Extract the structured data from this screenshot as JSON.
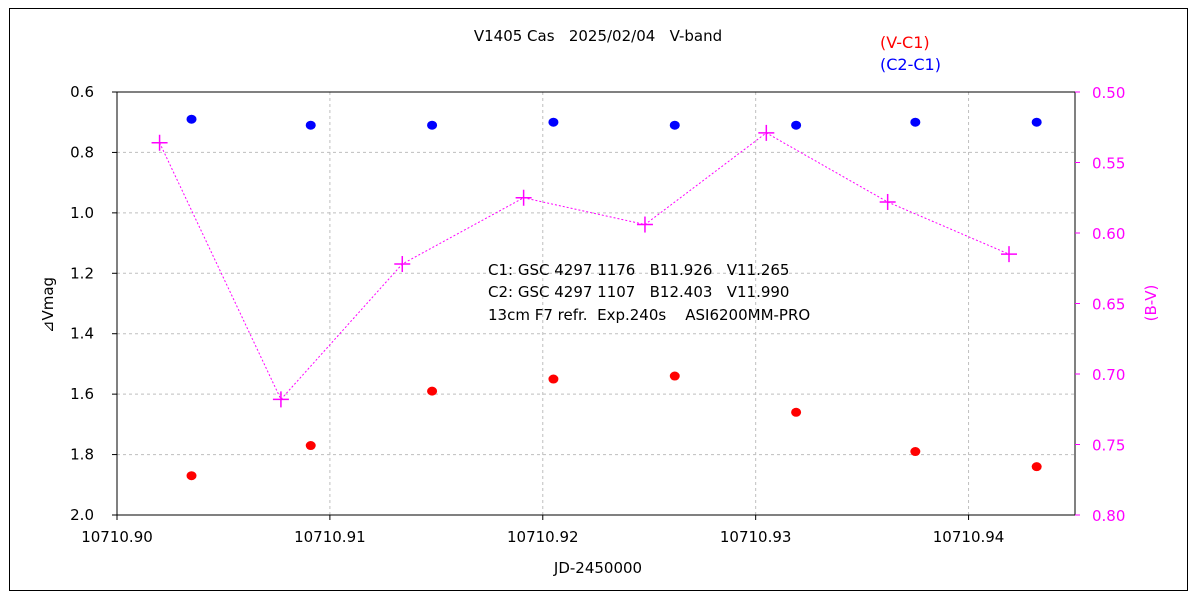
{
  "colors": {
    "vc1": "#ff0000",
    "c2c1": "#0000ff",
    "bv": "#ff00ff",
    "grid": "#bfbfbf",
    "axis": "#000000"
  },
  "chart_data": {
    "type": "scatter",
    "title": "V1405 Cas   2025/02/04   V-band",
    "xlabel": "JD-2450000",
    "ylabel": "⊿Vmag",
    "y2label": "(B-V)",
    "xlim": [
      10710.9,
      10710.945
    ],
    "ylim": [
      0.6,
      2.0
    ],
    "y_inverted": true,
    "y2lim": [
      0.5,
      0.8
    ],
    "y2_inverted": true,
    "grid": true,
    "x_ticks": [
      "10710.90",
      "10710.91",
      "10710.92",
      "10710.93",
      "10710.94"
    ],
    "x_tick_values": [
      10710.9,
      10710.91,
      10710.92,
      10710.93,
      10710.94
    ],
    "y_ticks": [
      "0.6",
      "0.8",
      "1.0",
      "1.2",
      "1.4",
      "1.6",
      "1.8",
      "2.0"
    ],
    "y_tick_values": [
      0.6,
      0.8,
      1.0,
      1.2,
      1.4,
      1.6,
      1.8,
      2.0
    ],
    "y2_ticks": [
      "0.50",
      "0.55",
      "0.60",
      "0.65",
      "0.70",
      "0.75",
      "0.80"
    ],
    "y2_tick_values": [
      0.5,
      0.55,
      0.6,
      0.65,
      0.7,
      0.75,
      0.8
    ],
    "legend": [
      "(V-C1)",
      "(C2-C1)"
    ],
    "legend_position": "top-right",
    "annotations": [
      "C1: GSC 4297 1176   B11.926   V11.265",
      "C2: GSC 4297 1107   B12.403   V11.990",
      "13cm F7 refr.  Exp.240s    ASI6200MM-PRO"
    ],
    "series": [
      {
        "name": "(V-C1)",
        "axis": "left",
        "marker": "dot",
        "x": [
          10710.9035,
          10710.9091,
          10710.9148,
          10710.9205,
          10710.9262,
          10710.9319,
          10710.9375,
          10710.9432
        ],
        "y": [
          1.87,
          1.77,
          1.59,
          1.55,
          1.54,
          1.66,
          1.79,
          1.84
        ]
      },
      {
        "name": "(C2-C1)",
        "axis": "left",
        "marker": "dot",
        "x": [
          10710.9035,
          10710.9091,
          10710.9148,
          10710.9205,
          10710.9262,
          10710.9319,
          10710.9375,
          10710.9432
        ],
        "y": [
          0.69,
          0.71,
          0.71,
          0.7,
          0.71,
          0.71,
          0.7,
          0.7
        ]
      },
      {
        "name": "",
        "axis": "right",
        "marker": "plus",
        "line": "dotted",
        "x": [
          10710.902,
          10710.9077,
          10710.9134,
          10710.9191,
          10710.9248,
          10710.9305,
          10710.9362,
          10710.9419
        ],
        "y": [
          0.536,
          0.718,
          0.622,
          0.575,
          0.594,
          0.529,
          0.578,
          0.615
        ]
      }
    ]
  }
}
